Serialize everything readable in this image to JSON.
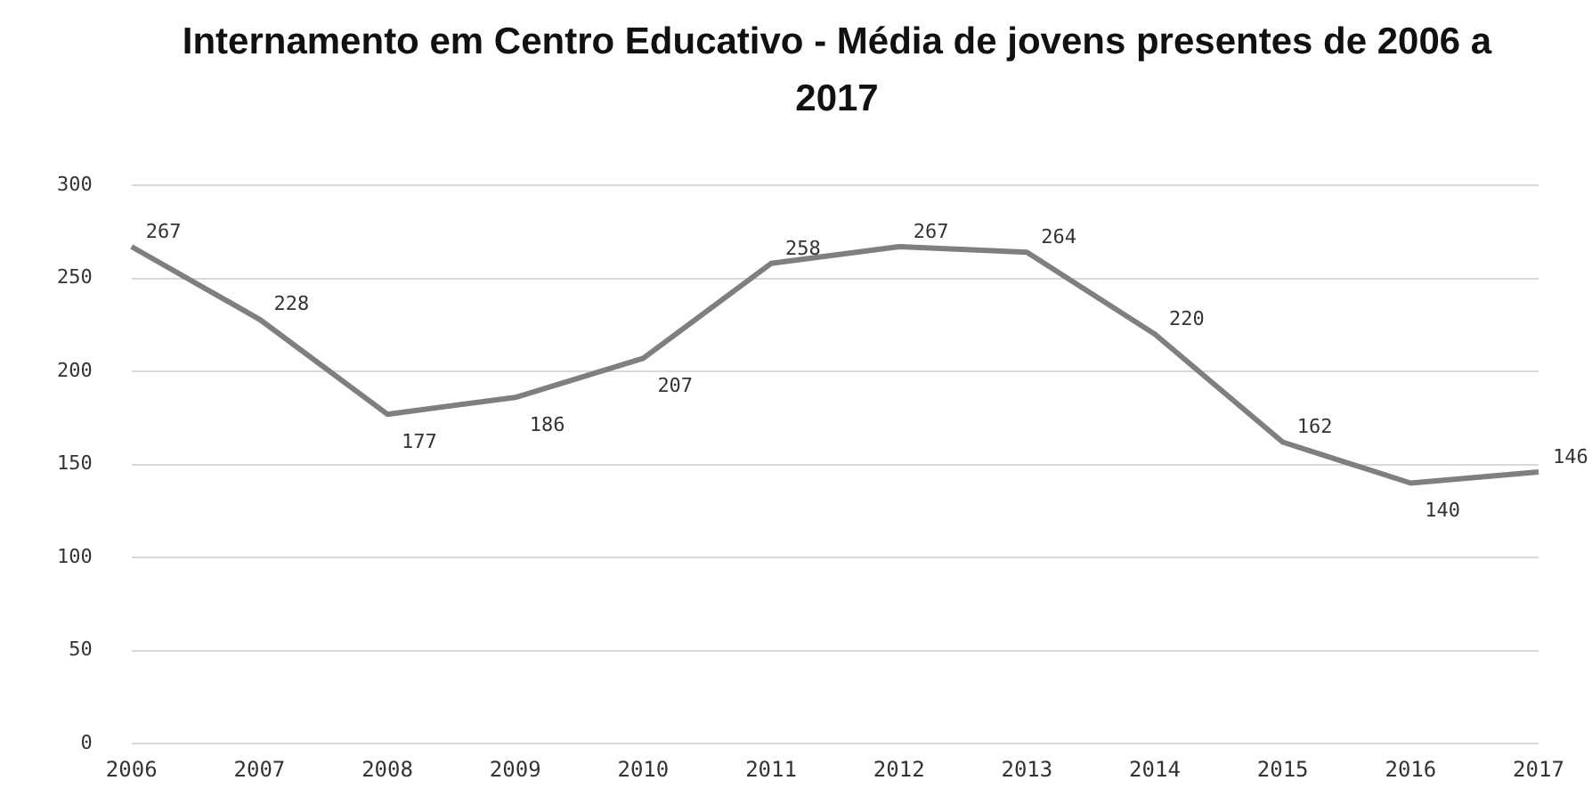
{
  "chart_data": {
    "type": "line",
    "title": "Internamento em Centro Educativo - Média de jovens presentes de 2006 a 2017",
    "categories": [
      "2006",
      "2007",
      "2008",
      "2009",
      "2010",
      "2011",
      "2012",
      "2013",
      "2014",
      "2015",
      "2016",
      "2017"
    ],
    "series": [
      {
        "color": "#7f7f7f",
        "values": [
          267,
          228,
          177,
          186,
          207,
          258,
          267,
          264,
          220,
          162,
          140,
          146
        ]
      }
    ],
    "ylim": [
      0,
      300
    ],
    "yticks": [
      0,
      50,
      100,
      150,
      200,
      250,
      300
    ],
    "grid": "y",
    "data_labels": true,
    "marker": "none",
    "line_style": "solid",
    "legend": false
  }
}
